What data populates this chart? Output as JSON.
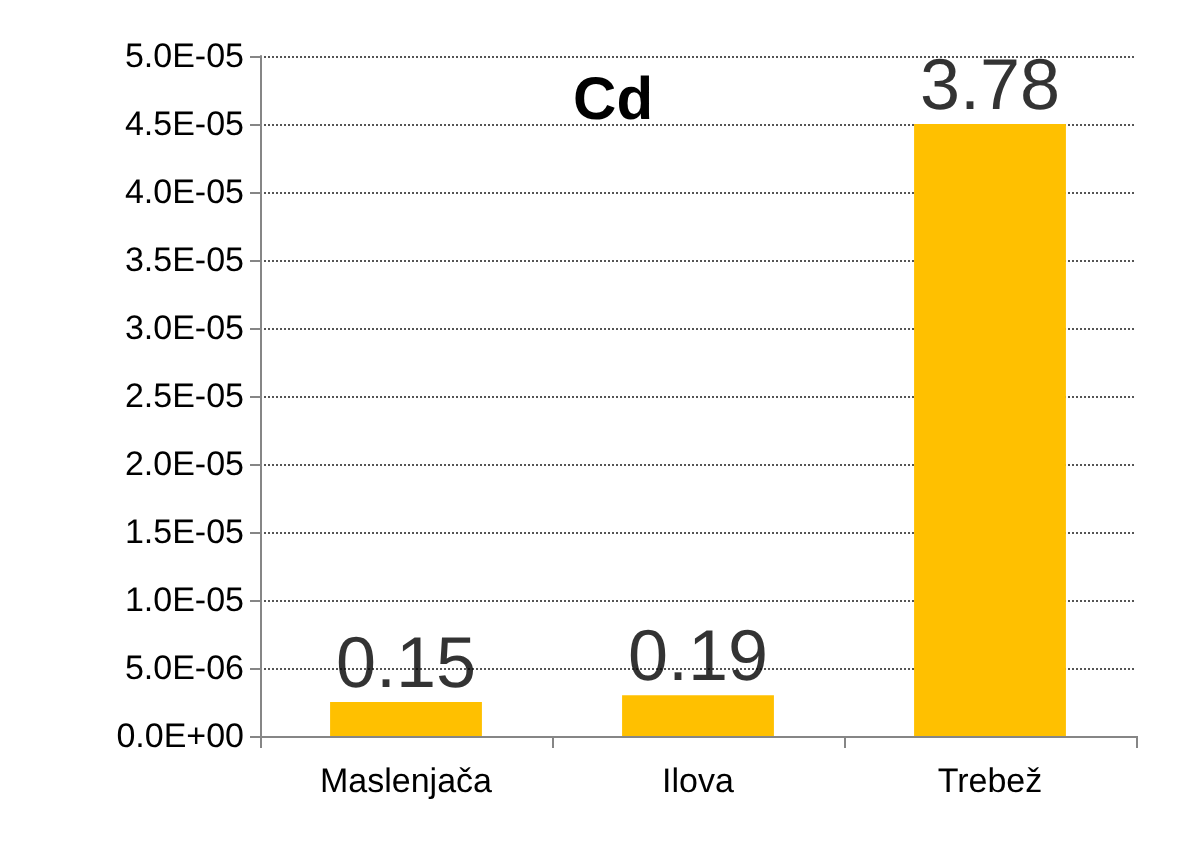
{
  "chart_data": {
    "type": "bar",
    "title": "Cd",
    "categories": [
      "Maslenjača",
      "Ilova",
      "Trebež"
    ],
    "values": [
      2.5e-06,
      3e-06,
      4.5e-05
    ],
    "color": "#ffc000",
    "annotations": [
      {
        "text": "0.15",
        "x": "Maslenjača",
        "y": 2.5e-06
      },
      {
        "text": "0.19",
        "x": "Ilova",
        "y": 3e-06
      },
      {
        "text": "3.78",
        "x": "Trebež",
        "y": 4.5e-05
      }
    ],
    "ylim": [
      0,
      5e-05
    ],
    "yticks": [
      {
        "value": 0,
        "label": "0.0E+00"
      },
      {
        "value": 5e-06,
        "label": "5.0E-06"
      },
      {
        "value": 1e-05,
        "label": "1.0E-05"
      },
      {
        "value": 1.5e-05,
        "label": "1.5E-05"
      },
      {
        "value": 2e-05,
        "label": "2.0E-05"
      },
      {
        "value": 2.5e-05,
        "label": "2.5E-05"
      },
      {
        "value": 3e-05,
        "label": "3.0E-05"
      },
      {
        "value": 3.5e-05,
        "label": "3.5E-05"
      },
      {
        "value": 4e-05,
        "label": "4.0E-05"
      },
      {
        "value": 4.5e-05,
        "label": "4.5E-05"
      },
      {
        "value": 5e-05,
        "label": "5.0E-05"
      }
    ],
    "grid": "y"
  }
}
